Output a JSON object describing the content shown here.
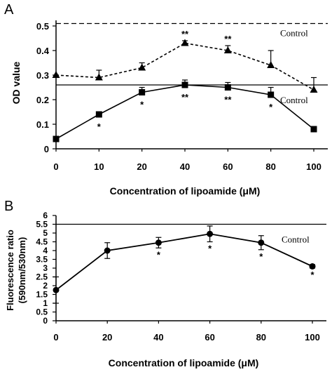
{
  "chart_data": [
    {
      "panel_label": "A",
      "type": "line",
      "xlabel": "Concentration of lipoamide (μM)",
      "ylabel": "OD value",
      "x": [
        0,
        10,
        20,
        40,
        60,
        80,
        100
      ],
      "x_tick_labels": [
        "0",
        "10",
        "20",
        "40",
        "60",
        "80",
        "100"
      ],
      "x_axis_positions": "categorical, evenly spaced",
      "ylim": [
        0,
        0.5
      ],
      "y_ticks": [
        "0",
        "0.1",
        "0.2",
        "0.3",
        "0.4",
        "0.5"
      ],
      "series": [
        {
          "marker": "triangle",
          "line_style": "dashed",
          "values": [
            0.3,
            0.29,
            0.33,
            0.43,
            0.4,
            0.34,
            0.24
          ],
          "errors": [
            0.0,
            0.03,
            0.02,
            0.01,
            0.02,
            0.06,
            0.05
          ],
          "significance": [
            "",
            "",
            "",
            "**",
            "**",
            "",
            ""
          ]
        },
        {
          "marker": "square",
          "line_style": "solid",
          "values": [
            0.04,
            0.14,
            0.23,
            0.26,
            0.25,
            0.22,
            0.08
          ],
          "errors": [
            0.01,
            0.01,
            0.02,
            0.02,
            0.02,
            0.03,
            0.01
          ],
          "significance": [
            "",
            "*",
            "*",
            "**",
            "**",
            "*",
            ""
          ]
        }
      ],
      "reference_lines": [
        {
          "label": "Control",
          "value": 0.51,
          "style": "dashed"
        },
        {
          "label": "Control",
          "value": 0.26,
          "style": "solid"
        }
      ],
      "grid": false,
      "legend": "none"
    },
    {
      "panel_label": "B",
      "type": "line",
      "xlabel": "Concentration of lipoamide (μM)",
      "ylabel_lines": [
        "Fluorescence ratio",
        "(590nm/530nm)"
      ],
      "x": [
        0,
        20,
        40,
        60,
        80,
        100
      ],
      "x_tick_labels": [
        "0",
        "20",
        "40",
        "60",
        "80",
        "100"
      ],
      "xlim": [
        0,
        100
      ],
      "ylim": [
        0,
        6
      ],
      "y_ticks": [
        "0",
        "0.5",
        "1",
        "1.5",
        "2",
        "2.5",
        "3",
        "3.5",
        "4",
        "4.5",
        "5",
        "5.5",
        "6"
      ],
      "series": [
        {
          "marker": "circle",
          "line_style": "solid",
          "values": [
            1.75,
            4.0,
            4.45,
            4.95,
            4.45,
            3.1
          ],
          "errors": [
            0.75,
            0.45,
            0.3,
            0.45,
            0.4,
            0.1
          ],
          "significance": [
            "",
            "",
            "*",
            "*",
            "*",
            "*"
          ]
        }
      ],
      "reference_lines": [
        {
          "label": "Control",
          "value": 5.5,
          "style": "solid"
        }
      ],
      "grid": false,
      "legend": "none"
    }
  ]
}
